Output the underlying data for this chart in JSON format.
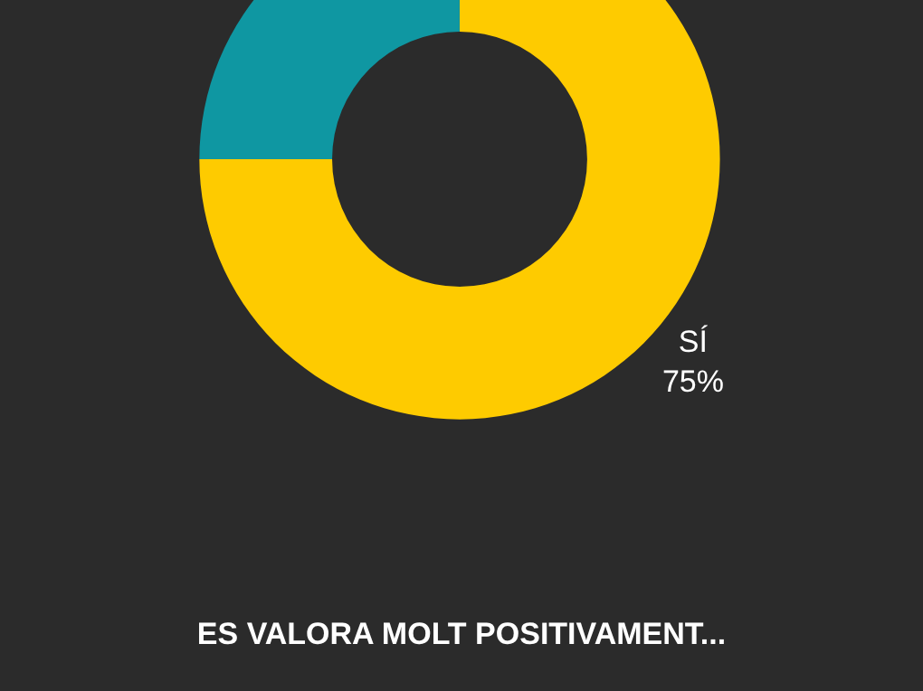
{
  "chart_data": {
    "type": "donut",
    "title": "ES VALORA MOLT POSITIVAMENT...",
    "categories": [
      "SÍ",
      null
    ],
    "values": [
      75,
      25
    ],
    "value_labels": [
      "75%",
      null
    ],
    "colors": [
      "#fecb00",
      "#0f97a2"
    ],
    "legend": false
  }
}
